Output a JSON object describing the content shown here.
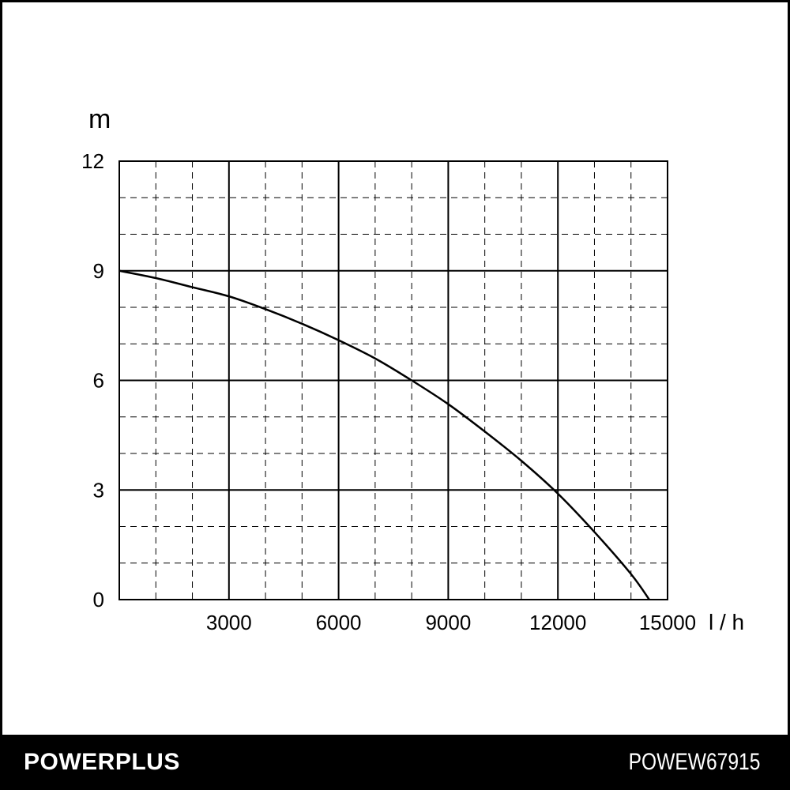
{
  "chart_data": {
    "type": "line",
    "title": "",
    "xlabel": "l / h",
    "ylabel": "m",
    "xlim": [
      0,
      15000
    ],
    "ylim": [
      0,
      12
    ],
    "x_ticks": [
      3000,
      6000,
      9000,
      12000,
      15000
    ],
    "x_tick_labels": [
      "3000",
      "6000",
      "9000",
      "12000",
      "15000"
    ],
    "y_ticks": [
      0,
      3,
      6,
      9,
      12
    ],
    "y_tick_labels": [
      "0",
      "3",
      "6",
      "9",
      "12"
    ],
    "grid": true,
    "series": [
      {
        "x": [
          0,
          1000,
          2000,
          3000,
          4000,
          5000,
          6000,
          7000,
          8000,
          9000,
          10000,
          11000,
          12000,
          13000,
          14000,
          14500
        ],
        "values": [
          9.0,
          8.8,
          8.55,
          8.3,
          7.95,
          7.55,
          7.1,
          6.6,
          6.0,
          5.35,
          4.6,
          3.8,
          2.9,
          1.85,
          0.7,
          0
        ]
      }
    ]
  },
  "footer": {
    "brand": "POWERPLUS",
    "model": "POWEW67915"
  }
}
